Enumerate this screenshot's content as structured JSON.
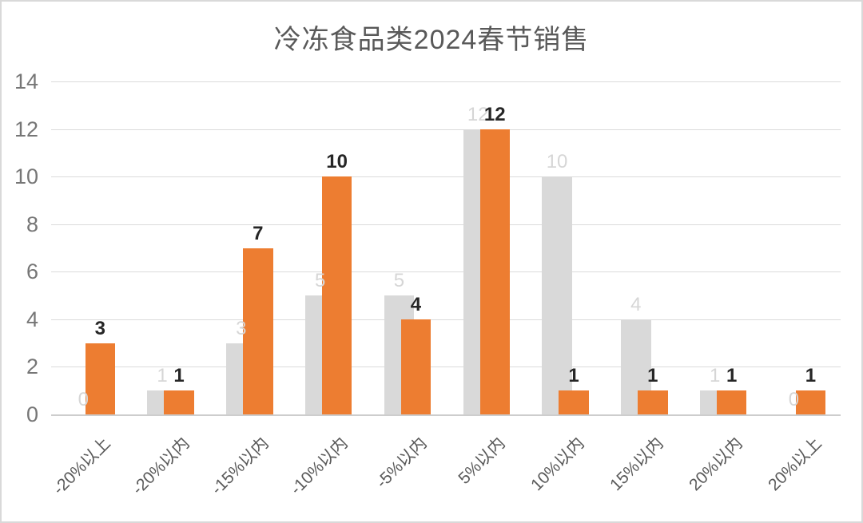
{
  "chart_data": {
    "type": "bar",
    "title": "冷冻食品类2024春节销售",
    "categories": [
      "-20%以上",
      "-20%以内",
      "-15%以内",
      "-10%以内",
      "-5%以内",
      "5%以内",
      "10%以内",
      "15%以内",
      "20%以内",
      "20%以上"
    ],
    "series": [
      {
        "name": "series-gray",
        "color": "#D9D9D9",
        "label_color": "#D6D6D6",
        "label_bold": false,
        "values": [
          0,
          1,
          3,
          5,
          5,
          12,
          10,
          4,
          1,
          0
        ]
      },
      {
        "name": "series-orange",
        "color": "#ED7D31",
        "label_color": "#262626",
        "label_bold": true,
        "values": [
          3,
          1,
          7,
          10,
          4,
          12,
          1,
          1,
          1,
          1
        ]
      }
    ],
    "xlabel": "",
    "ylabel": "",
    "ylim": [
      0,
      14
    ],
    "yticks": [
      0,
      2,
      4,
      6,
      8,
      10,
      12,
      14
    ],
    "grid": true,
    "legend": false,
    "data_labels": true
  },
  "colors": {
    "background": "#FFFFFF",
    "border": "#D9D9D9",
    "grid": "#DBDBDB",
    "axis": "#CDCDCD",
    "title": "#595959",
    "ytick": "#767676",
    "xtick": "#595959"
  }
}
